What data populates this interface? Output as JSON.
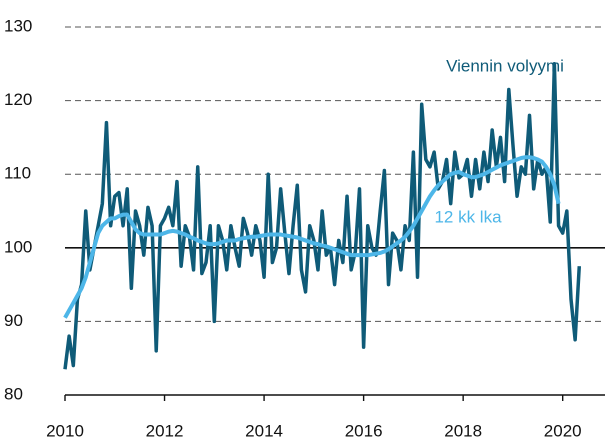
{
  "chart_data": {
    "type": "line",
    "x": [
      2010,
      2010.083,
      2010.167,
      2010.25,
      2010.333,
      2010.417,
      2010.5,
      2010.583,
      2010.667,
      2010.75,
      2010.833,
      2010.917,
      2011,
      2011.083,
      2011.167,
      2011.25,
      2011.333,
      2011.417,
      2011.5,
      2011.583,
      2011.667,
      2011.75,
      2011.833,
      2011.917,
      2012,
      2012.083,
      2012.167,
      2012.25,
      2012.333,
      2012.417,
      2012.5,
      2012.583,
      2012.667,
      2012.75,
      2012.833,
      2012.917,
      2013,
      2013.083,
      2013.167,
      2013.25,
      2013.333,
      2013.417,
      2013.5,
      2013.583,
      2013.667,
      2013.75,
      2013.833,
      2013.917,
      2014,
      2014.083,
      2014.167,
      2014.25,
      2014.333,
      2014.417,
      2014.5,
      2014.583,
      2014.667,
      2014.75,
      2014.833,
      2014.917,
      2015,
      2015.083,
      2015.167,
      2015.25,
      2015.333,
      2015.417,
      2015.5,
      2015.583,
      2015.667,
      2015.75,
      2015.833,
      2015.917,
      2016,
      2016.083,
      2016.167,
      2016.25,
      2016.333,
      2016.417,
      2016.5,
      2016.583,
      2016.667,
      2016.75,
      2016.833,
      2016.917,
      2017,
      2017.083,
      2017.167,
      2017.25,
      2017.333,
      2017.417,
      2017.5,
      2017.583,
      2017.667,
      2017.75,
      2017.833,
      2017.917,
      2018,
      2018.083,
      2018.167,
      2018.25,
      2018.333,
      2018.417,
      2018.5,
      2018.583,
      2018.667,
      2018.75,
      2018.833,
      2018.917,
      2019,
      2019.083,
      2019.167,
      2019.25,
      2019.333,
      2019.417,
      2019.5,
      2019.583,
      2019.667,
      2019.75,
      2019.833,
      2019.917,
      2020,
      2020.083,
      2020.167,
      2020.25,
      2020.333
    ],
    "series": [
      {
        "name": "Viennin volyymi",
        "color": "#0f5b78",
        "width": 3.5,
        "values": [
          83.5,
          88,
          84,
          93,
          95,
          105,
          97,
          100,
          103,
          106,
          117,
          103,
          107,
          107.5,
          103,
          108,
          94.5,
          105,
          103,
          99,
          105.5,
          103,
          86,
          103,
          104,
          105.5,
          103,
          109,
          97.5,
          103,
          101.5,
          97,
          111,
          96.5,
          98,
          103,
          90,
          103,
          101,
          97,
          103,
          100,
          97.5,
          104,
          102,
          99,
          103,
          101,
          96,
          110,
          98,
          100,
          108,
          102,
          96.5,
          103,
          108.5,
          97,
          94,
          103,
          101,
          97,
          105,
          99,
          100,
          95,
          101,
          98,
          107,
          97,
          99.5,
          108,
          86.5,
          103,
          100,
          99,
          105,
          110.5,
          95,
          102,
          101,
          97,
          103,
          101,
          113,
          96,
          119.5,
          112,
          111,
          113,
          108,
          109,
          112,
          106,
          113,
          109.5,
          110,
          112,
          107,
          112,
          108,
          113,
          109,
          116,
          111,
          115,
          109,
          121.5,
          114,
          107,
          111,
          110,
          118,
          108,
          112,
          110,
          111,
          103.5,
          125,
          103,
          102,
          105,
          93,
          87.5,
          97.5
        ]
      },
      {
        "name": "12 kk lka",
        "color": "#4db6e8",
        "width": 4,
        "values": [
          90.5,
          91.5,
          92.5,
          93.5,
          94.5,
          96,
          98,
          100,
          102,
          103,
          103.5,
          104,
          104,
          104.3,
          104.5,
          104.5,
          103.5,
          102.5,
          102,
          101.8,
          101.8,
          101.8,
          101.8,
          101.8,
          102,
          102.2,
          102.3,
          102.2,
          102,
          101.8,
          101.5,
          101.3,
          101,
          100.8,
          100.6,
          100.5,
          100.5,
          100.6,
          100.8,
          101,
          101,
          101,
          101.2,
          101.3,
          101.4,
          101.5,
          101.5,
          101.6,
          101.7,
          101.8,
          101.8,
          101.8,
          101.8,
          101.7,
          101.6,
          101.5,
          101.4,
          101.2,
          101,
          100.8,
          100.6,
          100.5,
          100.3,
          100.2,
          100,
          99.8,
          99.6,
          99.4,
          99.2,
          99,
          99,
          99,
          99,
          99,
          99.1,
          99.2,
          99.3,
          99.5,
          99.8,
          100.2,
          100.6,
          101,
          101.5,
          102.2,
          103,
          104,
          105,
          106,
          107,
          107.8,
          108.5,
          109,
          109.5,
          110,
          110.2,
          110.3,
          110,
          109.8,
          109.6,
          109.6,
          109.8,
          110,
          110.3,
          110.6,
          110.9,
          111.2,
          111.4,
          111.6,
          111.8,
          112,
          112.2,
          112.3,
          112.3,
          112.2,
          112,
          111.7,
          111,
          110,
          108.5,
          106,
          null,
          null,
          null,
          null,
          null
        ]
      }
    ],
    "xlim": [
      2010,
      2020.85
    ],
    "xticks": [
      2010,
      2012,
      2014,
      2016,
      2018,
      2020
    ],
    "ylim": [
      80,
      130
    ],
    "yticks": [
      80,
      90,
      100,
      110,
      120,
      130
    ],
    "grid": "dashed",
    "refline": 100
  }
}
